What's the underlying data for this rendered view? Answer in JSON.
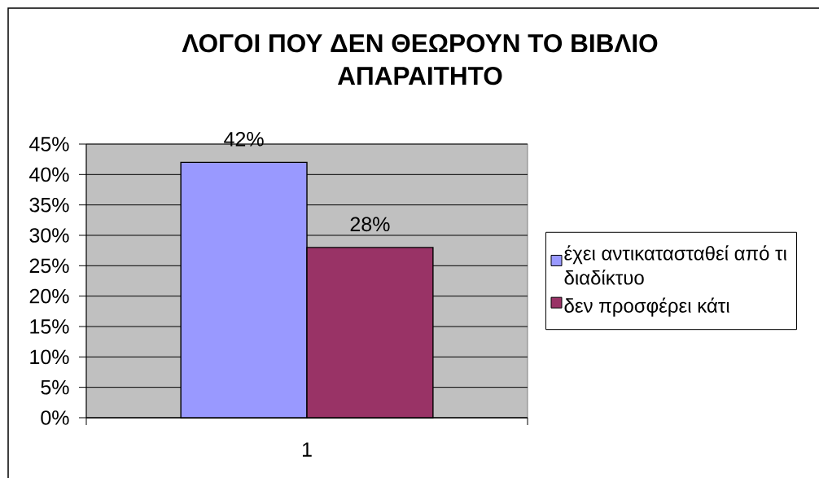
{
  "chart_data": {
    "type": "bar",
    "title": "ΛΟΓΟΙ ΠΟΥ ΔΕΝ ΘΕΩΡΟΥΝ ΤΟ ΒΙΒΛΙΟ ΑΠΑΡΑΙΤΗΤΟ",
    "categories": [
      "1"
    ],
    "series": [
      {
        "name": "έχει αντικατασταθεί από τι διαδίκτυο",
        "color": "#9999ff",
        "values": [
          42
        ],
        "value_labels": [
          "42%"
        ]
      },
      {
        "name": "δεν προσφέρει κάτι",
        "color": "#993366",
        "values": [
          28
        ],
        "value_labels": [
          "28%"
        ]
      }
    ],
    "ylim": [
      0,
      45
    ],
    "yticks": [
      {
        "value": 0,
        "label": "0%"
      },
      {
        "value": 5,
        "label": "5%"
      },
      {
        "value": 10,
        "label": "10%"
      },
      {
        "value": 15,
        "label": "15%"
      },
      {
        "value": 20,
        "label": "20%"
      },
      {
        "value": 25,
        "label": "25%"
      },
      {
        "value": 30,
        "label": "30%"
      },
      {
        "value": 35,
        "label": "35%"
      },
      {
        "value": 40,
        "label": "40%"
      },
      {
        "value": 45,
        "label": "45%"
      }
    ],
    "grid": "y",
    "legend": "right"
  }
}
